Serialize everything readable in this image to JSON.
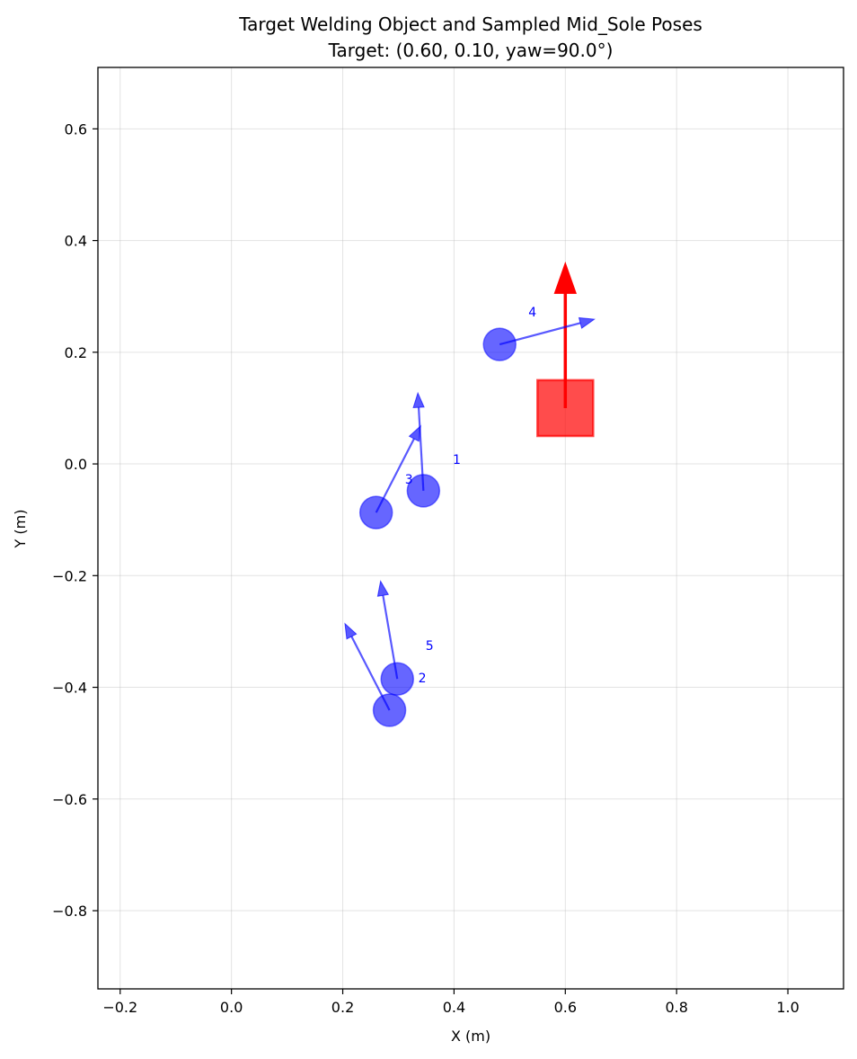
{
  "chart_data": {
    "type": "scatter",
    "title": "Target Welding Object and Sampled Mid_Sole Poses",
    "subtitle": "Target: (0.60, 0.10, yaw=90.0°)",
    "xlabel": "X (m)",
    "ylabel": "Y (m)",
    "xlim": [
      -0.24,
      1.1
    ],
    "ylim": [
      -0.94,
      0.71
    ],
    "xticks": [
      -0.2,
      0.0,
      0.2,
      0.4,
      0.6,
      0.8,
      1.0
    ],
    "xtick_labels": [
      "−0.2",
      "0.0",
      "0.2",
      "0.4",
      "0.6",
      "0.8",
      "1.0"
    ],
    "yticks": [
      0.6,
      0.4,
      0.2,
      0.0,
      -0.2,
      -0.4,
      -0.6,
      -0.8
    ],
    "ytick_labels": [
      "0.6",
      "0.4",
      "0.2",
      "0.0",
      "−0.2",
      "−0.4",
      "−0.6",
      "−0.8"
    ],
    "grid": true,
    "target": {
      "x": 0.6,
      "y": 0.1,
      "yaw_deg": 90.0,
      "size": 0.1,
      "arrow_length": 0.26,
      "color": "#ff0000"
    },
    "poses": [
      {
        "label": "1",
        "x": 0.345,
        "y": -0.048,
        "dx": -0.01,
        "dy": 0.175,
        "label_x": 0.405,
        "label_y": 0.008
      },
      {
        "label": "2",
        "x": 0.298,
        "y": -0.385,
        "dx": -0.03,
        "dy": 0.175,
        "label_x": 0.343,
        "label_y": -0.383
      },
      {
        "label": "3",
        "x": 0.26,
        "y": -0.087,
        "dx": 0.08,
        "dy": 0.155,
        "label_x": 0.319,
        "label_y": -0.027
      },
      {
        "label": "4",
        "x": 0.482,
        "y": 0.214,
        "dx": 0.17,
        "dy": 0.045,
        "label_x": 0.541,
        "label_y": 0.272
      },
      {
        "label": "5",
        "x": 0.284,
        "y": -0.441,
        "dx": -0.08,
        "dy": 0.155,
        "label_x": 0.356,
        "label_y": -0.325
      }
    ],
    "pose_color": "#0000ff"
  }
}
